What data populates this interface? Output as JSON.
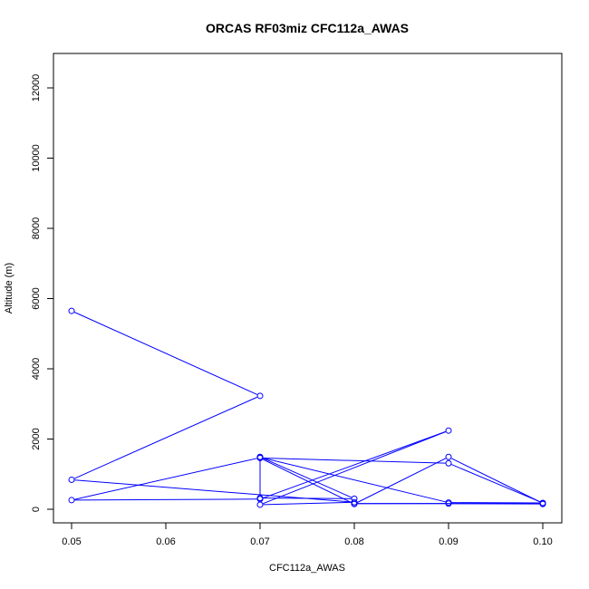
{
  "chart_data": {
    "type": "line",
    "title": "ORCAS RF03miz CFC112a_AWAS",
    "xlabel": "CFC112a_AWAS",
    "ylabel": "Altitude (m)",
    "xlim": [
      0.05,
      0.1
    ],
    "ylim": [
      0,
      12000
    ],
    "x_ticks": [
      0.05,
      0.06,
      0.07,
      0.08,
      0.09,
      0.1
    ],
    "x_tick_labels": [
      "0.05",
      "0.06",
      "0.07",
      "0.08",
      "0.09",
      "0.10"
    ],
    "y_ticks": [
      0,
      2000,
      4000,
      6000,
      8000,
      10000,
      12000
    ],
    "y_tick_labels": [
      "0",
      "2000",
      "4000",
      "6000",
      "8000",
      "10000",
      "12000"
    ],
    "grid": false,
    "series_color": "#0000ff",
    "series": [
      {
        "points": [
          {
            "x": 0.05,
            "y": 5650
          },
          {
            "x": 0.07,
            "y": 3230
          },
          {
            "x": 0.05,
            "y": 840
          },
          {
            "x": 0.08,
            "y": 200
          },
          {
            "x": 0.07,
            "y": 130
          },
          {
            "x": 0.09,
            "y": 2240
          },
          {
            "x": 0.07,
            "y": 290
          },
          {
            "x": 0.05,
            "y": 260
          },
          {
            "x": 0.07,
            "y": 1470
          },
          {
            "x": 0.07,
            "y": 1490
          },
          {
            "x": 0.08,
            "y": 300
          },
          {
            "x": 0.07,
            "y": 320
          },
          {
            "x": 0.07,
            "y": 1480
          },
          {
            "x": 0.09,
            "y": 190
          },
          {
            "x": 0.1,
            "y": 180
          },
          {
            "x": 0.09,
            "y": 1310
          },
          {
            "x": 0.07,
            "y": 1460
          },
          {
            "x": 0.08,
            "y": 150
          },
          {
            "x": 0.09,
            "y": 1490
          },
          {
            "x": 0.1,
            "y": 170
          },
          {
            "x": 0.08,
            "y": 160
          },
          {
            "x": 0.09,
            "y": 160
          },
          {
            "x": 0.1,
            "y": 150
          }
        ]
      }
    ]
  }
}
